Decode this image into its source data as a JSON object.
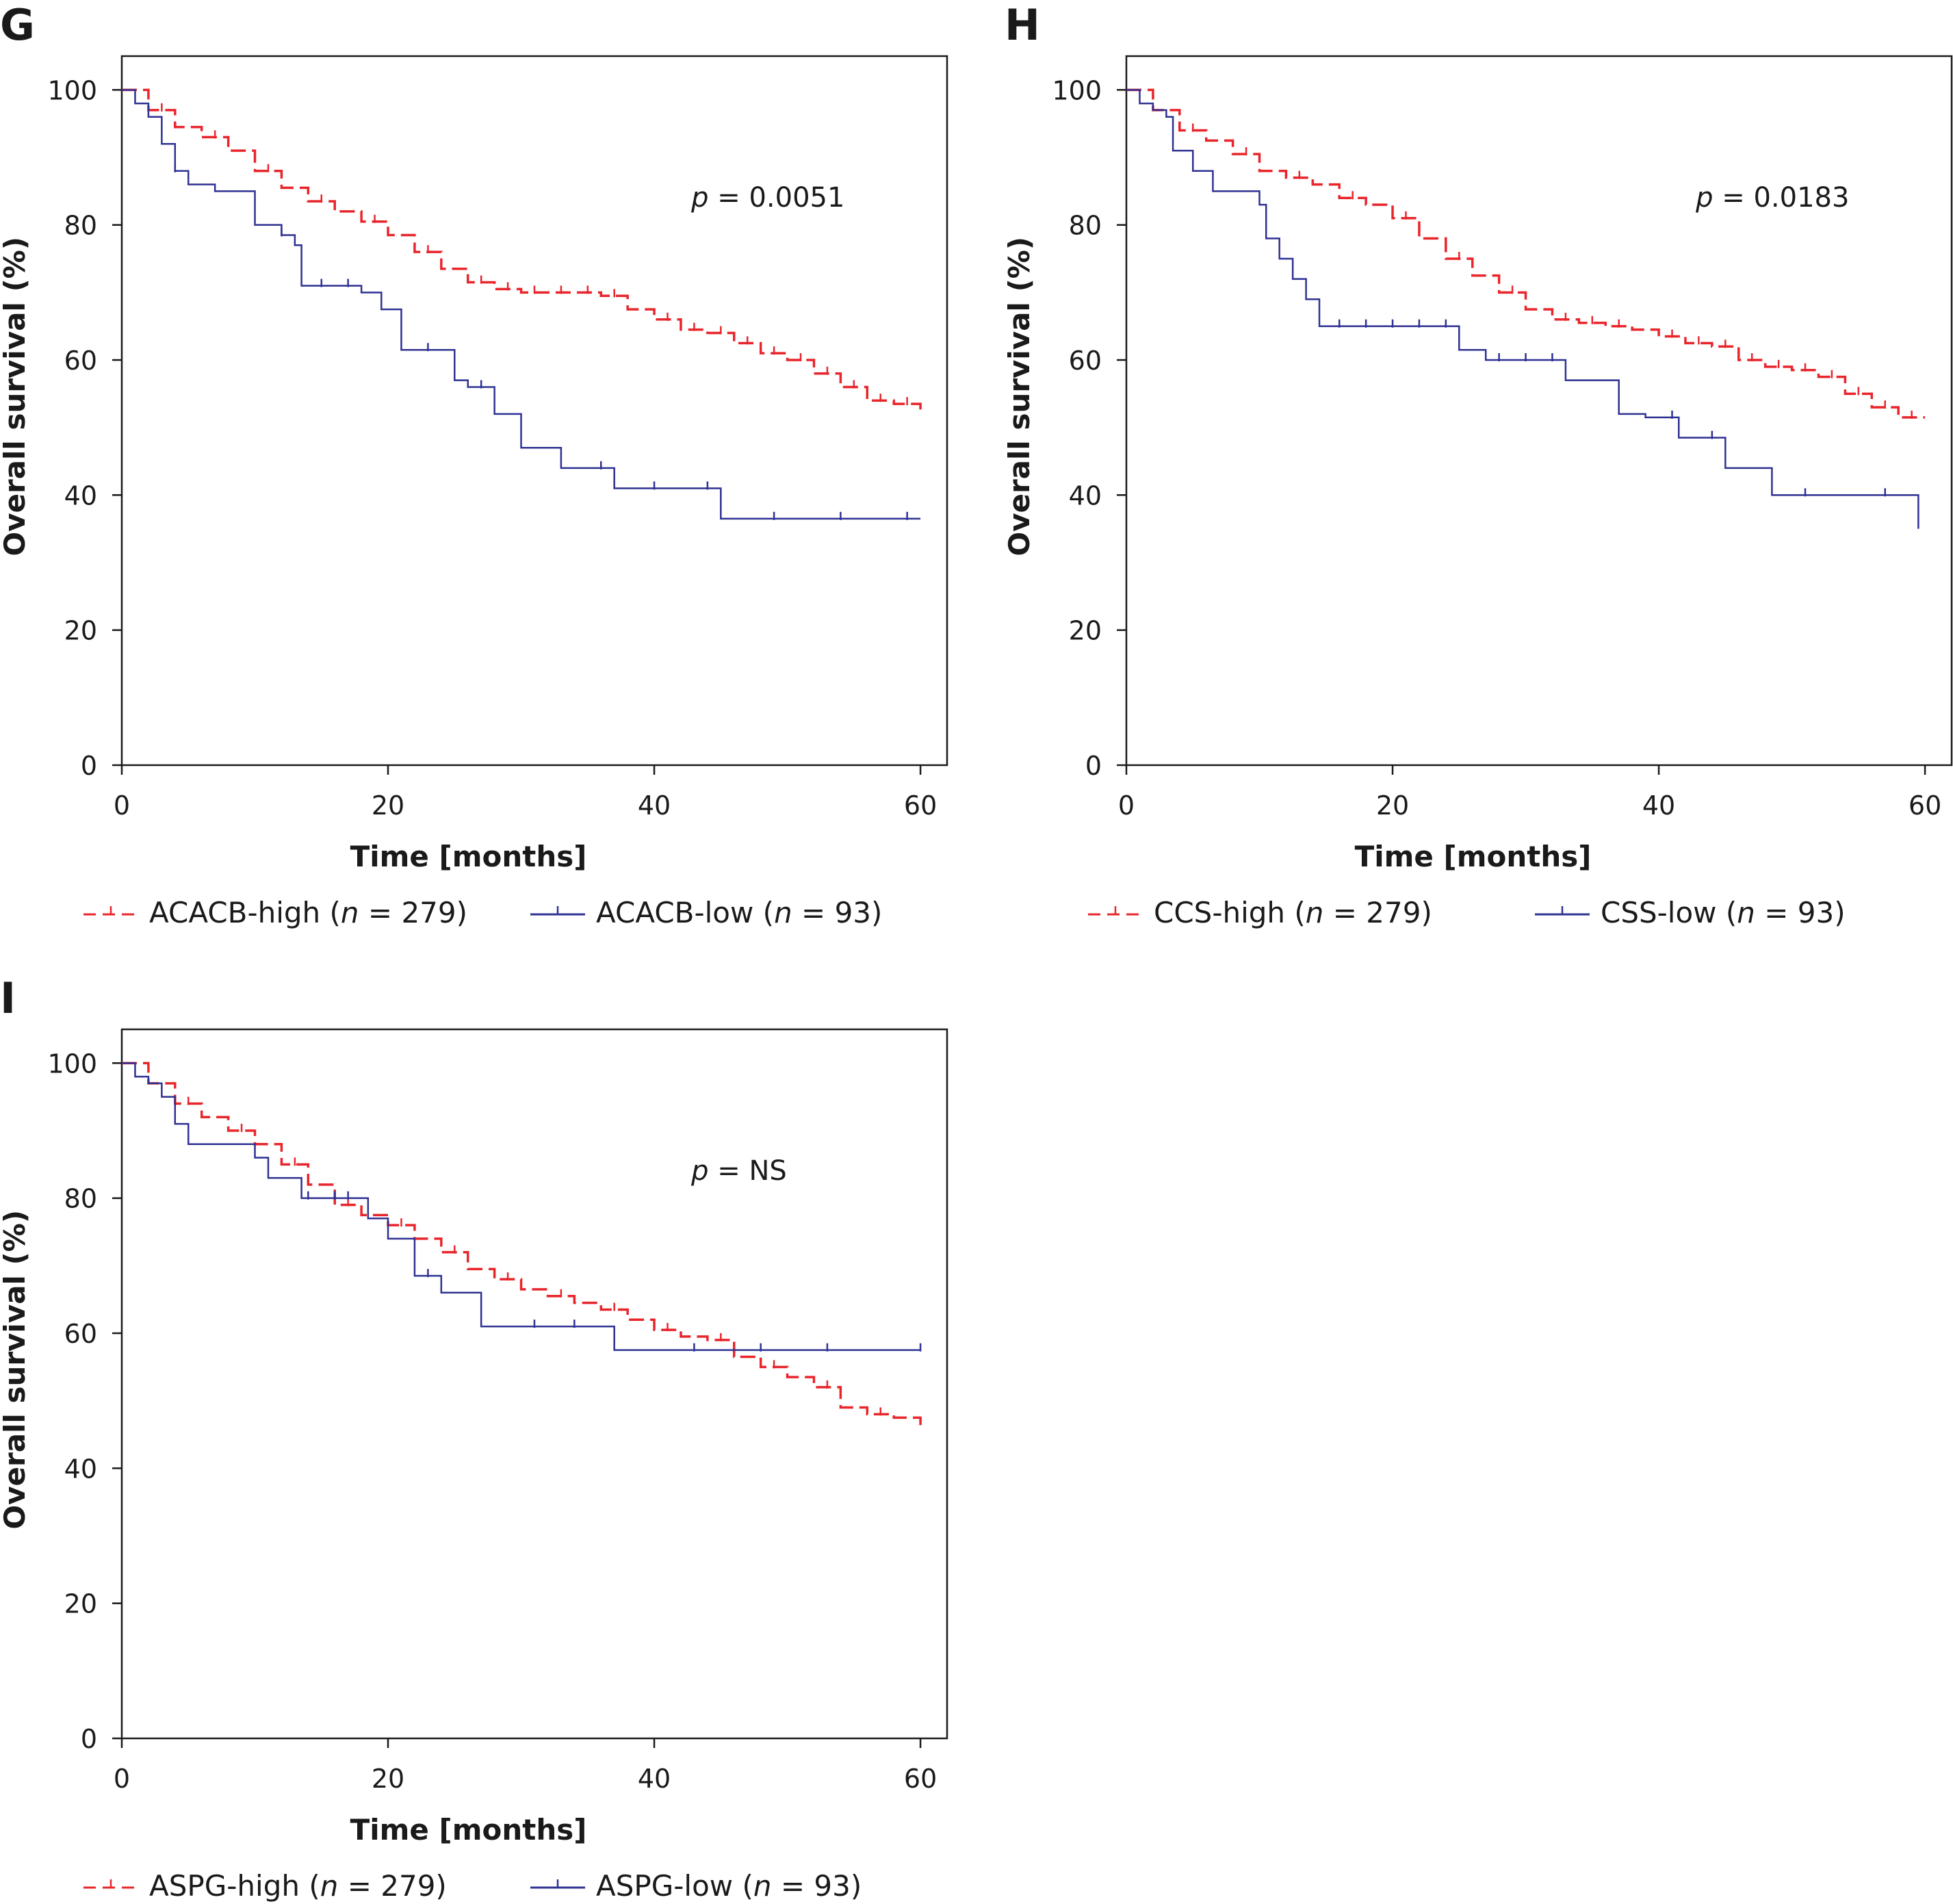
{
  "chart_data": [
    {
      "panel_label": "G",
      "type": "line",
      "chart_style": "kaplan-meier step curves with censor ticks",
      "xlabel": "Time [months]",
      "ylabel": "Overall survival (%)",
      "xlim": [
        0,
        62
      ],
      "ylim": [
        0,
        105
      ],
      "xticks": [
        "0",
        "20",
        "40",
        "60"
      ],
      "yticks": [
        "0",
        "20",
        "40",
        "60",
        "80",
        "100"
      ],
      "annotation": {
        "prefix": "p",
        "text": " = 0.0051"
      },
      "grid": false,
      "legend_position": "bottom",
      "series": [
        {
          "name": "ACACB-high (n = 279)",
          "legend_parts": {
            "before": "ACACB-high (",
            "italic": "n",
            "after": " = 279)"
          },
          "color": "#e8252b",
          "style": "dashed",
          "x": [
            0,
            2,
            4,
            6,
            8,
            10,
            12,
            14,
            16,
            18,
            20,
            22,
            24,
            26,
            28,
            30,
            32,
            34,
            36,
            38,
            40,
            42,
            44,
            46,
            48,
            50,
            52,
            54,
            56,
            58,
            60
          ],
          "y": [
            100,
            97,
            94.5,
            93,
            91,
            88,
            85.5,
            83.5,
            82,
            80.5,
            78.5,
            76,
            73.5,
            71.5,
            70.5,
            70,
            70,
            70,
            69.5,
            67.5,
            66,
            64.5,
            64,
            62.5,
            61,
            60,
            58,
            56,
            54,
            53.5,
            52
          ],
          "censor_x": [
            3,
            7,
            11,
            15,
            19,
            23,
            27,
            29,
            31,
            33,
            35,
            37,
            41,
            43,
            45,
            47,
            49,
            51,
            53,
            55,
            57,
            59
          ]
        },
        {
          "name": "ACACB-low (n = 93)",
          "legend_parts": {
            "before": "ACACB-low (",
            "italic": "n",
            "after": " = 93)"
          },
          "color": "#2e3192",
          "style": "solid",
          "x": [
            0,
            1,
            2,
            3,
            4,
            5,
            7,
            10,
            12,
            13,
            13.5,
            18,
            19.5,
            21,
            25,
            26,
            28,
            30,
            33,
            37,
            45,
            60
          ],
          "y": [
            100,
            98,
            96,
            92,
            88,
            86,
            85,
            80,
            78.5,
            77,
            71,
            70,
            67.5,
            61.5,
            57,
            56,
            52,
            47,
            44,
            41,
            36.5,
            36.5
          ],
          "censor_x": [
            4,
            12,
            15,
            17,
            23,
            27,
            36,
            40,
            44,
            49,
            54,
            59
          ]
        }
      ]
    },
    {
      "panel_label": "H",
      "type": "line",
      "chart_style": "kaplan-meier step curves with censor ticks",
      "xlabel": "Time [months]",
      "ylabel": "Overall survival (%)",
      "xlim": [
        0,
        62
      ],
      "ylim": [
        0,
        105
      ],
      "xticks": [
        "0",
        "20",
        "40",
        "60"
      ],
      "yticks": [
        "0",
        "20",
        "40",
        "60",
        "80",
        "100"
      ],
      "annotation": {
        "prefix": "p",
        "text": " = 0.0183"
      },
      "grid": false,
      "legend_position": "bottom",
      "series": [
        {
          "name": "CCS-high (n = 279)",
          "legend_parts": {
            "before": "CCS-high (",
            "italic": "n",
            "after": " = 279)"
          },
          "color": "#e8252b",
          "style": "dashed",
          "x": [
            0,
            2,
            4,
            6,
            8,
            10,
            12,
            14,
            16,
            18,
            20,
            22,
            24,
            26,
            28,
            30,
            32,
            34,
            36,
            38,
            40,
            42,
            44,
            46,
            48,
            50,
            52,
            54,
            56,
            58,
            60
          ],
          "y": [
            100,
            97,
            94,
            92.5,
            90.5,
            88,
            87,
            86,
            84,
            83,
            81,
            78,
            75,
            72.5,
            70,
            67.5,
            66,
            65.5,
            65,
            64.5,
            63.5,
            62.5,
            62,
            60,
            59,
            58.5,
            57.5,
            55,
            53,
            51.5,
            51.5
          ],
          "censor_x": [
            5,
            9,
            13,
            17,
            21,
            25,
            29,
            33,
            35,
            37,
            41,
            43,
            45,
            47,
            49,
            51,
            53,
            55,
            57,
            59
          ]
        },
        {
          "name": "CSS-low (n = 93)",
          "legend_parts": {
            "before": "CSS-low (",
            "italic": "n",
            "after": " = 93)"
          },
          "color": "#2e3192",
          "style": "solid",
          "x": [
            0,
            1,
            2,
            3,
            3.5,
            5,
            6.5,
            10,
            10.5,
            11.5,
            12.5,
            13.5,
            14.5,
            25,
            27,
            33,
            37,
            39,
            41.5,
            45,
            48.5,
            59.5
          ],
          "y": [
            100,
            98,
            97,
            96,
            91,
            88,
            85,
            83,
            78,
            75,
            72,
            69,
            65,
            61.5,
            60,
            57,
            52,
            51.5,
            48.5,
            44,
            40,
            35
          ],
          "censor_x": [
            16,
            18,
            20,
            22,
            24,
            28,
            30,
            32,
            41,
            44,
            51,
            57
          ]
        }
      ]
    },
    {
      "panel_label": "I",
      "type": "line",
      "chart_style": "kaplan-meier step curves with censor ticks",
      "xlabel": "Time [months]",
      "ylabel": "Overall survival (%)",
      "xlim": [
        0,
        62
      ],
      "ylim": [
        0,
        105
      ],
      "xticks": [
        "0",
        "20",
        "40",
        "60"
      ],
      "yticks": [
        "0",
        "20",
        "40",
        "60",
        "80",
        "100"
      ],
      "annotation": {
        "prefix": "p",
        "text": " = NS"
      },
      "grid": false,
      "legend_position": "bottom",
      "series": [
        {
          "name": "ASPG-high (n = 279)",
          "legend_parts": {
            "before": "ASPG-high (",
            "italic": "n",
            "after": " = 279)"
          },
          "color": "#e8252b",
          "style": "dashed",
          "x": [
            0,
            2,
            4,
            6,
            8,
            10,
            12,
            14,
            16,
            18,
            20,
            22,
            24,
            26,
            28,
            30,
            32,
            34,
            36,
            38,
            40,
            42,
            44,
            46,
            48,
            50,
            52,
            54,
            56,
            58,
            60
          ],
          "y": [
            100,
            97,
            94,
            92,
            90,
            88,
            85,
            82,
            79,
            77.5,
            76,
            74,
            72,
            69.5,
            68,
            66.5,
            65.5,
            64.5,
            63.5,
            62,
            60.5,
            59.5,
            59,
            56.5,
            55,
            53.5,
            52,
            49,
            48,
            47.5,
            46
          ],
          "censor_x": [
            5,
            9,
            13,
            17,
            21,
            25,
            29,
            33,
            37,
            41,
            45,
            49,
            53,
            57
          ]
        },
        {
          "name": "ASPG-low (n = 93)",
          "legend_parts": {
            "before": "ASPG-low (",
            "italic": "n",
            "after": " = 93)"
          },
          "color": "#2e3192",
          "style": "solid",
          "x": [
            0,
            1,
            2,
            3,
            4,
            5,
            10,
            11,
            13.5,
            18.5,
            20,
            22,
            24,
            27,
            30,
            37,
            60
          ],
          "y": [
            100,
            98,
            97,
            95,
            91,
            88,
            86,
            83,
            80,
            77,
            74,
            68.5,
            66,
            61,
            61,
            57.5,
            57.5
          ],
          "censor_x": [
            14,
            16,
            17,
            23,
            31,
            34,
            43,
            48,
            53,
            60
          ]
        }
      ]
    }
  ]
}
